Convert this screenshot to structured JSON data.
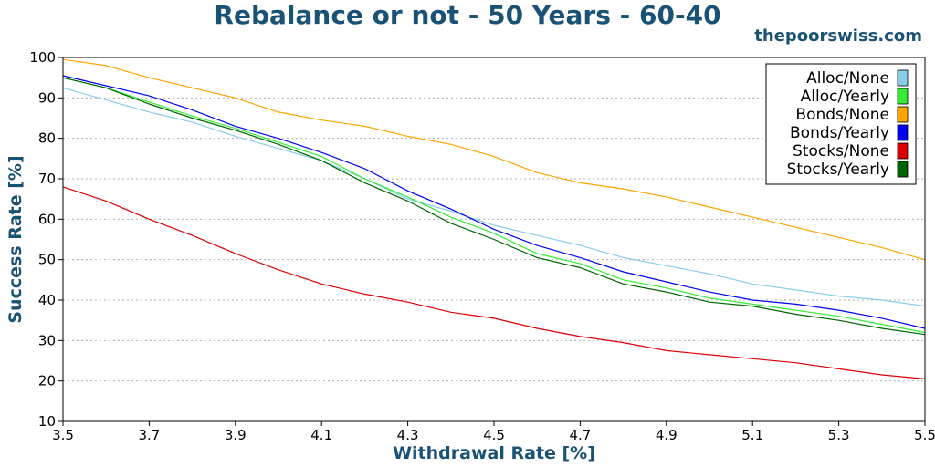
{
  "header": {
    "title": "Rebalance or not - 50 Years - 60-40",
    "watermark": "thepoorswiss.com",
    "accent_color": "#1a5276"
  },
  "chart_data": {
    "type": "line",
    "title": "Rebalance or not - 50 Years - 60-40",
    "xlabel": "Withdrawal Rate [%]",
    "ylabel": "Success Rate [%]",
    "xlim": [
      3.5,
      5.5
    ],
    "ylim": [
      10,
      100
    ],
    "xticks": [
      3.5,
      3.7,
      3.9,
      4.1,
      4.3,
      4.5,
      4.7,
      4.9,
      5.1,
      5.3,
      5.5
    ],
    "xtick_labels": [
      "3.5",
      "3.7",
      "3.9",
      "4.1",
      "4.3",
      "4.5",
      "4.7",
      "4.9",
      "5.1",
      "5.3",
      "5.5"
    ],
    "yticks": [
      10,
      20,
      30,
      40,
      50,
      60,
      70,
      80,
      90,
      100
    ],
    "ytick_labels": [
      "10",
      "20",
      "30",
      "40",
      "50",
      "60",
      "70",
      "80",
      "90",
      "100"
    ],
    "grid": "horizontal dotted",
    "legend_position": "top-right",
    "x": [
      3.5,
      3.6,
      3.7,
      3.8,
      3.9,
      4.0,
      4.1,
      4.2,
      4.3,
      4.4,
      4.5,
      4.6,
      4.7,
      4.8,
      4.9,
      5.0,
      5.1,
      5.2,
      5.3,
      5.4,
      5.5
    ],
    "series": [
      {
        "name": "Alloc/None",
        "color": "#87ceeb",
        "values": [
          92.5,
          89.5,
          86.5,
          84,
          80.5,
          77.5,
          74.5,
          70,
          65,
          62,
          58.5,
          56,
          53.5,
          50.5,
          48.5,
          46.5,
          44,
          42.5,
          41,
          40,
          38.5
        ]
      },
      {
        "name": "Alloc/Yearly",
        "color": "#33ee33",
        "values": [
          95,
          92.5,
          89,
          85.5,
          82.5,
          79,
          75.5,
          70,
          65.5,
          60.5,
          56.5,
          51.5,
          49,
          45,
          43,
          40.5,
          39,
          37.5,
          36,
          34,
          32
        ]
      },
      {
        "name": "Bonds/None",
        "color": "#ffa500",
        "values": [
          99.5,
          98,
          95,
          92.5,
          90,
          86.5,
          84.5,
          83,
          80.5,
          78.5,
          75.5,
          71.5,
          69,
          67.5,
          65.5,
          63,
          60.5,
          58,
          55.5,
          53,
          50
        ]
      },
      {
        "name": "Bonds/Yearly",
        "color": "#0000ee",
        "values": [
          95.5,
          93,
          90.5,
          87,
          83,
          80,
          76.5,
          72.5,
          67,
          62.5,
          57.5,
          53.5,
          50.5,
          47,
          44.5,
          42,
          40,
          39,
          37.5,
          35.5,
          33
        ]
      },
      {
        "name": "Stocks/None",
        "color": "#dd0000",
        "values": [
          68,
          64.5,
          60,
          56,
          51.5,
          47.5,
          44,
          41.5,
          39.5,
          37,
          35.5,
          33,
          31,
          29.5,
          27.5,
          26.5,
          25.5,
          24.5,
          23,
          21.5,
          20.5
        ]
      },
      {
        "name": "Stocks/Yearly",
        "color": "#006400",
        "values": [
          95,
          92.5,
          88.5,
          85,
          82,
          78.5,
          74.5,
          69,
          64.5,
          59,
          55,
          50.5,
          48,
          44,
          42,
          39.5,
          38.5,
          36.5,
          35,
          33,
          31.5
        ]
      }
    ]
  }
}
